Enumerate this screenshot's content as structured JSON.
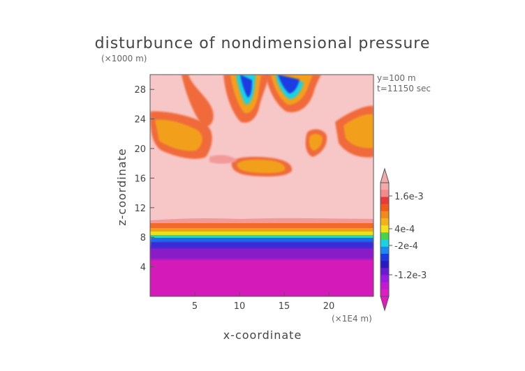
{
  "chart_data": {
    "type": "heatmap",
    "title": "disturbunce of nondimensional pressure",
    "xlabel": "x-coordinate",
    "ylabel": "z-coordinate",
    "x_unit": "(×1E4 m)",
    "y_unit": "(×1000 m)",
    "annotations": [
      "y=100 m",
      "t=11150 sec"
    ],
    "xlim": [
      0,
      25
    ],
    "ylim": [
      0,
      30
    ],
    "x_ticks": [
      5,
      10,
      15,
      20
    ],
    "y_ticks": [
      4,
      8,
      12,
      16,
      20,
      24,
      28
    ],
    "x_tick_labels": [
      "5",
      "10",
      "15",
      "20"
    ],
    "y_tick_labels": [
      "4",
      "8",
      "12",
      "16",
      "20",
      "24",
      "28"
    ],
    "colorbar": {
      "labels": [
        "1.6e-3",
        "4e-4",
        "-2e-4",
        "-1.2e-3"
      ],
      "colors": [
        "#f2a9a9",
        "#f28b8b",
        "#e83a3a",
        "#f25a1a",
        "#f28a1a",
        "#f2b21a",
        "#f2e21a",
        "#4ad24a",
        "#1ad2e2",
        "#1a8af2",
        "#1a3ae2",
        "#2a1ac2",
        "#6a1ad2",
        "#9a1ae2",
        "#c21ad2",
        "#e21ac2"
      ]
    },
    "grid": false,
    "legend_placement": "right"
  }
}
